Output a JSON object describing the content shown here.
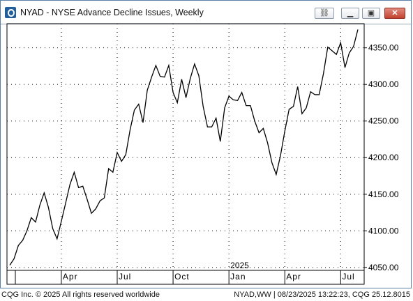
{
  "window": {
    "title": "NYAD - NYSE Advance Decline Issues, Weekly"
  },
  "footer": {
    "left": "CQG Inc. © 2025 All rights reserved worldwide",
    "right": "NYAD,WW | 08/23/2025 13:22:23, CQG 25.12.8015"
  },
  "chart_data": {
    "type": "line",
    "y_ticks": [
      "4050.00",
      "4100.00",
      "4150.00",
      "4200.00",
      "4250.00",
      "4300.00",
      "4350.00"
    ],
    "y_tick_values": [
      4050,
      4100,
      4150,
      4200,
      4250,
      4300,
      4350
    ],
    "ylim": [
      4046,
      4383
    ],
    "x_ticks": [
      "Apr",
      "Jul",
      "Oct",
      "Jan",
      "Apr",
      "Jul"
    ],
    "x_tick_weeks": [
      12,
      25,
      38,
      51,
      64,
      77
    ],
    "year_label": "2025",
    "year_label_week": 51,
    "grid": true,
    "series": [
      {
        "values": [
          4053,
          4062,
          4080,
          4087,
          4100,
          4118,
          4112,
          4135,
          4152,
          4132,
          4103,
          4089,
          4113,
          4138,
          4163,
          4180,
          4159,
          4161,
          4143,
          4124,
          4130,
          4141,
          4145,
          4185,
          4180,
          4207,
          4195,
          4204,
          4238,
          4265,
          4273,
          4248,
          4292,
          4310,
          4326,
          4311,
          4310,
          4326,
          4289,
          4275,
          4307,
          4282,
          4308,
          4328,
          4312,
          4270,
          4242,
          4242,
          4254,
          4222,
          4268,
          4284,
          4279,
          4278,
          4289,
          4271,
          4271,
          4250,
          4234,
          4240,
          4220,
          4193,
          4177,
          4203,
          4236,
          4266,
          4270,
          4297,
          4260,
          4268,
          4290,
          4286,
          4286,
          4315,
          4351,
          4346,
          4341,
          4357,
          4323,
          4343,
          4352,
          4375
        ]
      }
    ]
  }
}
